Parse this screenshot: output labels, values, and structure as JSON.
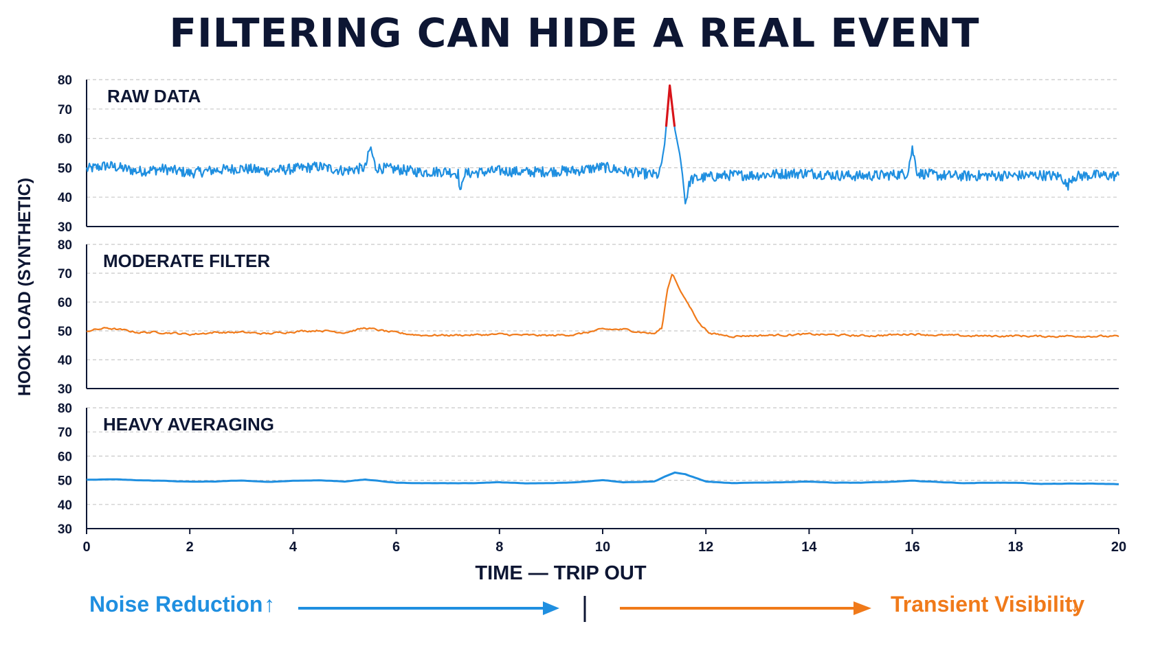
{
  "title": "FILTERING CAN HIDE A REAL EVENT",
  "colors": {
    "blue": "#1f8fe0",
    "orange": "#f07a1a",
    "red": "#d8141a",
    "dark": "#0d1633"
  },
  "chart_data": {
    "type": "line",
    "ylabel": "HOOK LOAD (SYNTHETIC)",
    "xlabel": "TIME — TRIP OUT",
    "xlim": [
      0,
      20
    ],
    "ylim": [
      30,
      80
    ],
    "xticks": [
      0,
      2,
      4,
      6,
      8,
      10,
      12,
      14,
      16,
      18,
      20
    ],
    "yticks": [
      30,
      40,
      50,
      60,
      70,
      80
    ],
    "grid": true,
    "panels": [
      {
        "name": "RAW DATA",
        "color": "#1f8fe0",
        "highlight_color": "#d8141a",
        "highlight_threshold": 64,
        "noise_amplitude": 1.8,
        "points": [
          [
            0,
            49.5
          ],
          [
            0.4,
            50.8
          ],
          [
            1,
            48.8
          ],
          [
            1.5,
            49.6
          ],
          [
            2,
            48.2
          ],
          [
            2.5,
            49.2
          ],
          [
            3,
            49.8
          ],
          [
            3.5,
            48.9
          ],
          [
            4,
            49.6
          ],
          [
            4.5,
            50.4
          ],
          [
            5,
            49
          ],
          [
            5.4,
            50
          ],
          [
            5.5,
            57
          ],
          [
            5.6,
            50
          ],
          [
            6,
            49.5
          ],
          [
            6.5,
            48.5
          ],
          [
            7,
            48.8
          ],
          [
            7.2,
            48
          ],
          [
            7.25,
            40.5
          ],
          [
            7.3,
            48
          ],
          [
            8,
            49
          ],
          [
            8.5,
            48.5
          ],
          [
            9,
            48.8
          ],
          [
            9.5,
            49
          ],
          [
            10,
            50.3
          ],
          [
            10.5,
            48.6
          ],
          [
            11,
            47.6
          ],
          [
            11.1,
            47.5
          ],
          [
            11.2,
            58
          ],
          [
            11.3,
            78
          ],
          [
            11.4,
            63
          ],
          [
            11.5,
            54
          ],
          [
            11.55,
            47
          ],
          [
            11.6,
            38
          ],
          [
            11.7,
            46
          ],
          [
            12,
            46.8
          ],
          [
            12.5,
            47.5
          ],
          [
            13,
            47.5
          ],
          [
            13.5,
            48
          ],
          [
            14,
            48.2
          ],
          [
            14.5,
            47.5
          ],
          [
            15,
            47.2
          ],
          [
            15.5,
            47.5
          ],
          [
            15.9,
            48
          ],
          [
            16,
            56.5
          ],
          [
            16.1,
            48.2
          ],
          [
            16.5,
            47.4
          ],
          [
            17,
            47.2
          ],
          [
            17.5,
            47.4
          ],
          [
            18,
            47.3
          ],
          [
            18.5,
            47.5
          ],
          [
            18.9,
            47
          ],
          [
            19,
            43.5
          ],
          [
            19.1,
            47
          ],
          [
            19.5,
            47.5
          ],
          [
            20,
            47.2
          ]
        ]
      },
      {
        "name": "MODERATE FILTER",
        "color": "#f07a1a",
        "noise_amplitude": 0.7,
        "points": [
          [
            0,
            50
          ],
          [
            0.4,
            51
          ],
          [
            1,
            49.5
          ],
          [
            1.5,
            49.5
          ],
          [
            2,
            48.8
          ],
          [
            2.5,
            49.5
          ],
          [
            3,
            49.5
          ],
          [
            3.5,
            49
          ],
          [
            4,
            49.8
          ],
          [
            4.5,
            50.2
          ],
          [
            5,
            49.5
          ],
          [
            5.4,
            51
          ],
          [
            6,
            49.3
          ],
          [
            6.5,
            48.5
          ],
          [
            7,
            48.5
          ],
          [
            7.5,
            48.6
          ],
          [
            8,
            48.8
          ],
          [
            8.5,
            48.5
          ],
          [
            9,
            48.4
          ],
          [
            9.5,
            48.8
          ],
          [
            10,
            50.5
          ],
          [
            10.4,
            50.5
          ],
          [
            11,
            49
          ],
          [
            11.15,
            51
          ],
          [
            11.25,
            64
          ],
          [
            11.35,
            70
          ],
          [
            11.5,
            64
          ],
          [
            11.7,
            58
          ],
          [
            11.9,
            52
          ],
          [
            12.1,
            49
          ],
          [
            12.5,
            48.2
          ],
          [
            13,
            48.4
          ],
          [
            13.5,
            48.6
          ],
          [
            14,
            48.8
          ],
          [
            14.5,
            48.6
          ],
          [
            15,
            48.3
          ],
          [
            15.5,
            48.5
          ],
          [
            16,
            49
          ],
          [
            16.5,
            48.5
          ],
          [
            17,
            48.3
          ],
          [
            17.5,
            48.2
          ],
          [
            18,
            48.3
          ],
          [
            18.5,
            48.1
          ],
          [
            19,
            48.2
          ],
          [
            19.5,
            48.2
          ],
          [
            20,
            48
          ]
        ]
      },
      {
        "name": "HEAVY AVERAGING",
        "color": "#1f8fe0",
        "noise_amplitude": 0.1,
        "points": [
          [
            0,
            50.2
          ],
          [
            0.5,
            50.4
          ],
          [
            1,
            50
          ],
          [
            1.5,
            49.8
          ],
          [
            2,
            49.4
          ],
          [
            2.5,
            49.5
          ],
          [
            3,
            49.9
          ],
          [
            3.5,
            49.3
          ],
          [
            4,
            49.8
          ],
          [
            4.5,
            50
          ],
          [
            5,
            49.5
          ],
          [
            5.4,
            50.3
          ],
          [
            6,
            49
          ],
          [
            6.5,
            48.8
          ],
          [
            7,
            48.8
          ],
          [
            7.5,
            48.8
          ],
          [
            8,
            49.2
          ],
          [
            8.5,
            48.7
          ],
          [
            9,
            48.8
          ],
          [
            9.5,
            49.2
          ],
          [
            10,
            50.1
          ],
          [
            10.4,
            49.2
          ],
          [
            11,
            49.5
          ],
          [
            11.2,
            51.5
          ],
          [
            11.4,
            53.2
          ],
          [
            11.6,
            52.5
          ],
          [
            12,
            49.5
          ],
          [
            12.5,
            48.8
          ],
          [
            13,
            49
          ],
          [
            13.5,
            49.2
          ],
          [
            14,
            49.5
          ],
          [
            14.5,
            49
          ],
          [
            15,
            49
          ],
          [
            15.5,
            49.3
          ],
          [
            16,
            49.8
          ],
          [
            16.5,
            49.3
          ],
          [
            17,
            48.8
          ],
          [
            17.5,
            49
          ],
          [
            18,
            49
          ],
          [
            18.5,
            48.5
          ],
          [
            19,
            48.6
          ],
          [
            19.5,
            48.6
          ],
          [
            20,
            48.4
          ]
        ]
      }
    ]
  },
  "footer": {
    "left_label": "Noise Reduction",
    "left_arrow_symbol": "↑",
    "right_label": "Transient Visibility",
    "right_arrow_symbol": "↓"
  }
}
